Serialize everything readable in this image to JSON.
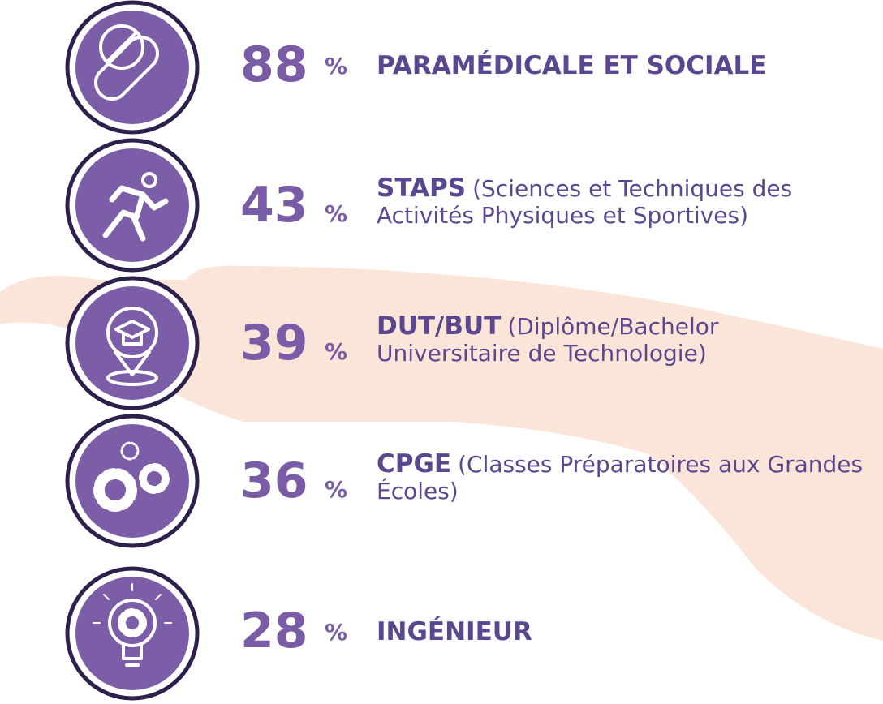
{
  "items": [
    {
      "value": "88",
      "unit": "%",
      "name": "PARAMÉDICALE ET SOCIALE",
      "detail": ""
    },
    {
      "value": "43",
      "unit": "%",
      "name": "STAPS",
      "detail": "(Sciences et Techniques des Activités Physiques et Sportives)"
    },
    {
      "value": "39",
      "unit": "%",
      "name": "DUT/BUT",
      "detail": "(Diplôme/Bachelor Universitaire de Technologie)"
    },
    {
      "value": "36",
      "unit": "%",
      "name": "CPGE",
      "detail": "(Classes Préparatoires aux Grandes Écoles)"
    },
    {
      "value": "28",
      "unit": "%",
      "name": "INGÉNIEUR",
      "detail": ""
    }
  ]
}
